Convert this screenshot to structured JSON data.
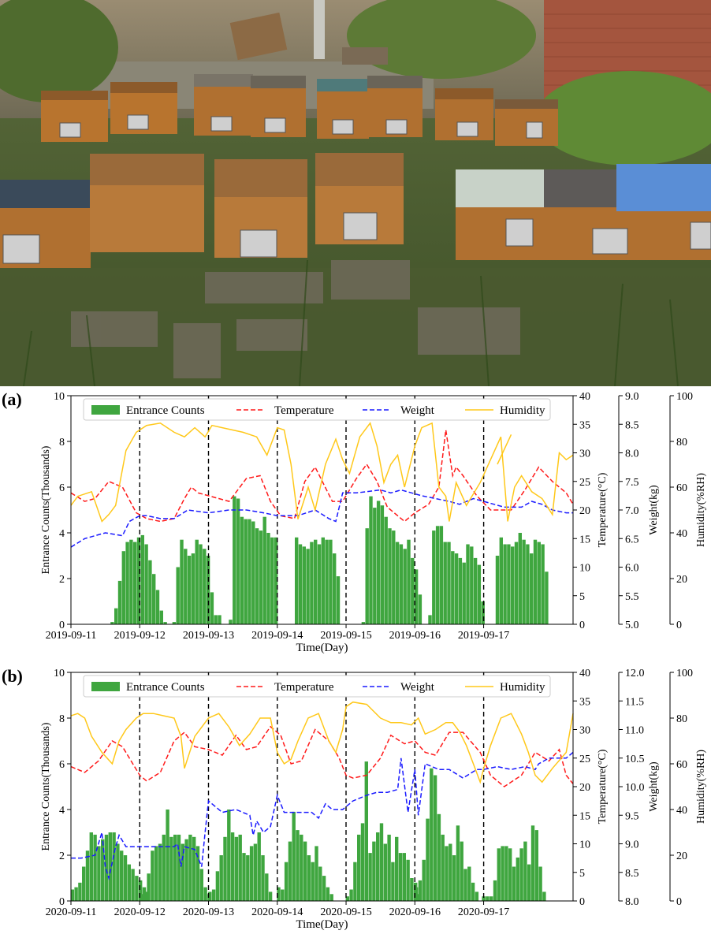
{
  "figure": {
    "photo_description": "Outdoor apiary: rows of wooden beehives with wire-mesh vents on grass beside a brick wall",
    "colors": {
      "bars": "#3fa63f",
      "temperature": "#ff1a1a",
      "weight": "#1a1aff",
      "humidity": "#ffc81a"
    }
  },
  "chart_data": [
    {
      "panel_label": "(a)",
      "type": "bar",
      "legend": [
        "Entrance Counts",
        "Temperature",
        "Weight",
        "Humidity"
      ],
      "xlabel": "Time(Day)",
      "x_ticks": [
        "2019-09-11",
        "2019-09-12",
        "2019-09-13",
        "2019-09-14",
        "2019-09-15",
        "2019-09-16",
        "2019-09-17"
      ],
      "axes": [
        {
          "label": "Entrance Counts(Thousands)",
          "range": [
            0,
            10
          ],
          "ticks": [
            "0",
            "2",
            "4",
            "6",
            "8",
            "10"
          ]
        },
        {
          "label": "Temperature(°C)",
          "range": [
            0,
            40
          ],
          "ticks": [
            "0",
            "5",
            "10",
            "15",
            "20",
            "25",
            "30",
            "35",
            "40"
          ]
        },
        {
          "label": "Weight(kg)",
          "range": [
            5.0,
            9.0
          ],
          "ticks": [
            "5.0",
            "5.5",
            "6.0",
            "6.5",
            "7.0",
            "7.5",
            "8.0",
            "8.5",
            "9.0"
          ]
        },
        {
          "label": "Humidity(%RH)",
          "range": [
            0,
            100
          ],
          "ticks": [
            "0",
            "20",
            "40",
            "60",
            "80",
            "100"
          ]
        }
      ],
      "day_bars": [
        [
          0.1,
          0.7,
          1.9,
          3.2,
          3.6,
          3.7,
          3.6,
          3.8,
          3.9,
          3.5,
          2.8,
          2.2,
          1.5,
          0.6,
          0.1
        ],
        [
          0.1,
          2.5,
          3.7,
          3.3,
          3.0,
          3.1,
          3.7,
          3.5,
          3.3,
          3.0,
          1.4,
          0.4,
          0.4
        ],
        [
          0.2,
          5.6,
          5.5,
          4.7,
          4.6,
          4.6,
          4.5,
          4.2,
          4.1,
          4.7,
          4.0,
          3.8,
          3.8
        ],
        [
          3.8,
          3.5,
          3.4,
          3.3,
          3.6,
          3.7,
          3.5,
          3.8,
          3.7,
          3.7,
          3.1,
          2.1
        ],
        [
          0.1,
          4.2,
          5.6,
          5.1,
          5.4,
          5.2,
          4.7,
          4.2,
          4.1,
          3.6,
          3.5,
          3.3,
          3.7,
          2.9,
          2.4,
          1.3
        ],
        [
          0.4,
          4.1,
          4.3,
          4.3,
          3.6,
          3.6,
          3.2,
          3.1,
          2.9,
          2.7,
          3.5,
          3.4,
          2.9,
          2.6,
          1.0
        ],
        [
          3.0,
          3.8,
          3.5,
          3.5,
          3.4,
          3.6,
          4.0,
          3.7,
          3.5,
          3.1,
          3.7,
          3.6,
          3.5,
          2.3
        ]
      ],
      "bar_start": [
        0.6,
        1.5,
        2.32,
        3.28,
        4.25,
        5.22,
        6.2
      ],
      "series": [
        {
          "name": "Temperature",
          "x": [
            0,
            0.2,
            0.35,
            0.55,
            0.75,
            0.95,
            1.1,
            1.3,
            1.5,
            1.65,
            1.75,
            1.85,
            2.0,
            2.3,
            2.55,
            2.75,
            2.9,
            3.05,
            3.25,
            3.4,
            3.55,
            3.8,
            3.95,
            4.15,
            4.3,
            4.45,
            4.6,
            4.85,
            5.0,
            5.2,
            5.35,
            5.45,
            5.55,
            5.6,
            5.7,
            5.9,
            6.1,
            6.4,
            6.6,
            6.8,
            7.0,
            7.2,
            7.3
          ],
          "values": [
            23,
            21.5,
            22,
            25,
            24,
            19.5,
            18.5,
            18,
            18.5,
            22,
            24,
            23,
            22.5,
            21.5,
            25.5,
            26,
            21.5,
            19,
            18.5,
            25,
            27.5,
            21.5,
            21.5,
            25.5,
            28,
            25,
            20.5,
            18,
            19.5,
            21,
            24,
            34,
            26,
            27.5,
            26,
            22.5,
            20,
            20,
            23.5,
            27.5,
            25,
            23,
            21
          ]
        },
        {
          "name": "Weight",
          "x": [
            0,
            0.2,
            0.5,
            0.75,
            0.85,
            1.0,
            1.1,
            1.3,
            1.5,
            1.7,
            2.0,
            2.3,
            2.55,
            2.8,
            3.0,
            3.3,
            3.55,
            3.75,
            3.85,
            3.95,
            4.15,
            4.5,
            4.65,
            4.8,
            5.1,
            5.3,
            5.5,
            5.65,
            5.85,
            6.0,
            6.3,
            6.55,
            6.7,
            6.85,
            7.0,
            7.2,
            7.3
          ],
          "values": [
            6.35,
            6.5,
            6.6,
            6.55,
            6.8,
            6.9,
            6.9,
            6.85,
            6.85,
            7.0,
            6.95,
            7.0,
            7.0,
            6.95,
            6.9,
            6.9,
            7.0,
            6.85,
            6.8,
            7.3,
            7.3,
            7.35,
            7.3,
            7.35,
            7.25,
            7.2,
            7.15,
            7.1,
            7.2,
            7.15,
            7.05,
            7.05,
            7.15,
            7.1,
            7.0,
            6.95,
            6.95
          ]
        },
        {
          "name": "Humidity",
          "x": [
            0,
            0.1,
            0.3,
            0.45,
            0.55,
            0.65,
            0.8,
            0.95,
            1.1,
            1.3,
            1.5,
            1.65,
            1.8,
            1.95,
            2.05,
            2.2,
            2.35,
            2.5,
            2.7,
            2.85,
            3.0,
            3.1,
            3.2,
            3.3,
            3.45,
            3.55,
            3.7,
            3.85,
            3.95,
            4.05,
            4.2,
            4.35,
            4.45,
            4.55,
            4.65,
            4.75,
            4.85,
            5.0,
            5.1,
            5.25,
            5.35,
            5.45,
            5.5,
            5.6,
            5.75,
            5.95,
            6.1,
            6.25,
            6.35,
            6.45,
            6.55,
            6.7,
            6.85,
            7.0,
            7.1,
            7.2,
            7.3
          ],
          "values": [
            52,
            56,
            58,
            45,
            48,
            52,
            76,
            84,
            87,
            88,
            84,
            82,
            86,
            82,
            87,
            86,
            85,
            84,
            82,
            74,
            86,
            85,
            70,
            46,
            60,
            50,
            70,
            81,
            72,
            66,
            82,
            88,
            78,
            62,
            70,
            74,
            60,
            78,
            86,
            88,
            60,
            56,
            45,
            62,
            52,
            62,
            72,
            82,
            45,
            60,
            65,
            58,
            55,
            48,
            75,
            72,
            74
          ]
        }
      ],
      "humidity_bump": [
        6.2,
        70,
        6.4,
        83
      ]
    },
    {
      "panel_label": "(b)",
      "type": "bar",
      "legend": [
        "Entrance Counts",
        "Temperature",
        "Weight",
        "Humidity"
      ],
      "xlabel": "Time(Day)",
      "x_ticks": [
        "2020-09-11",
        "2020-09-12",
        "2020-09-13",
        "2020-09-14",
        "2020-09-15",
        "2020-09-16",
        "2020-09-17"
      ],
      "axes": [
        {
          "label": "Entrance Counts(Thousands)",
          "range": [
            0,
            10
          ],
          "ticks": [
            "0",
            "2",
            "4",
            "6",
            "8",
            "10"
          ]
        },
        {
          "label": "Temperature(°C)",
          "range": [
            0,
            40
          ],
          "ticks": [
            "0",
            "5",
            "10",
            "15",
            "20",
            "25",
            "30",
            "35",
            "40"
          ]
        },
        {
          "label": "Weight(kg)",
          "range": [
            8.0,
            12.0
          ],
          "ticks": [
            "8.0",
            "8.5",
            "9.0",
            "9.5",
            "10.0",
            "10.5",
            "11.0",
            "11.5",
            "12.0"
          ]
        },
        {
          "label": "Humidity(%RH)",
          "range": [
            0,
            100
          ],
          "ticks": [
            "0",
            "20",
            "40",
            "60",
            "80",
            "100"
          ]
        }
      ],
      "day_bars": [
        [
          0.5,
          0.6,
          0.8,
          1.5,
          2.2,
          3.0,
          2.9,
          2.4,
          2.7,
          2.9,
          3.0,
          3.0,
          2.5,
          2.2,
          2.0,
          1.6,
          1.4,
          1.1,
          0.9,
          0.6,
          0.4
        ],
        [
          0.3,
          0.4,
          1.2,
          2.2,
          2.4,
          2.5,
          2.9,
          4.0,
          2.8,
          2.9,
          2.9,
          2.5,
          2.7,
          2.9,
          2.8,
          2.4,
          1.4,
          0.6,
          0.3
        ],
        [
          0.4,
          0.5,
          1.3,
          2.0,
          2.8,
          4.0,
          3.0,
          2.8,
          2.9,
          2.1,
          2.0,
          2.4,
          2.5,
          3.0,
          2.0,
          1.2,
          0.4
        ],
        [
          0.6,
          0.5,
          1.7,
          2.6,
          3.9,
          3.1,
          2.9,
          2.6,
          2.0,
          1.7,
          2.4,
          1.5,
          1.1,
          0.6,
          0.3
        ],
        [
          0.2,
          0.5,
          1.7,
          2.9,
          3.4,
          6.1,
          2.1,
          2.6,
          3.0,
          3.4,
          2.5,
          2.9,
          1.7,
          2.8,
          2.1,
          2.1,
          1.8,
          1.0,
          0.8,
          0.3
        ],
        [
          0.6,
          0.9,
          1.8,
          3.6,
          5.8,
          5.5,
          3.8,
          2.9,
          2.4,
          2.5,
          2.0,
          3.3,
          2.6,
          1.4,
          1.5,
          0.8,
          0.4
        ],
        [
          0.2,
          0.2,
          0.2,
          0.9,
          2.3,
          2.4,
          2.4,
          2.3,
          1.5,
          1.9,
          2.3,
          2.6,
          1.6,
          3.3,
          3.1,
          1.5,
          0.4
        ]
      ],
      "bar_start": [
        0.02,
        1.02,
        2.02,
        3.02,
        4.02,
        5.02,
        6.0
      ],
      "series": [
        {
          "name": "Temperature",
          "x": [
            0,
            0.2,
            0.4,
            0.6,
            0.75,
            0.9,
            1.0,
            1.1,
            1.3,
            1.5,
            1.65,
            1.8,
            2.0,
            2.2,
            2.4,
            2.55,
            2.7,
            2.9,
            3.05,
            3.2,
            3.35,
            3.55,
            3.75,
            3.9,
            4.0,
            4.1,
            4.3,
            4.5,
            4.65,
            4.85,
            5.0,
            5.15,
            5.3,
            5.5,
            5.7,
            5.95,
            6.1,
            6.3,
            6.55,
            6.75,
            6.95,
            7.1,
            7.2,
            7.3
          ],
          "values": [
            23.5,
            22.5,
            24.5,
            28,
            27,
            24,
            22,
            21,
            22.5,
            28,
            29.5,
            27,
            26.5,
            25.5,
            29,
            26.5,
            27,
            30.5,
            29,
            24,
            24.5,
            30,
            28,
            25,
            22,
            21.5,
            22,
            25,
            29,
            27.5,
            28,
            26,
            25.5,
            29.5,
            29.5,
            26,
            22,
            20,
            22,
            26,
            24.5,
            26.5,
            22,
            20.5
          ]
        },
        {
          "name": "Weight",
          "x": [
            0,
            0.15,
            0.35,
            0.45,
            0.5,
            0.55,
            0.65,
            0.7,
            0.8,
            1.0,
            1.2,
            1.4,
            1.5,
            1.55,
            1.6,
            1.65,
            1.8,
            1.9,
            1.95,
            2.0,
            2.2,
            2.4,
            2.6,
            2.65,
            2.7,
            2.8,
            2.9,
            3.0,
            3.1,
            3.3,
            3.5,
            3.6,
            3.7,
            3.8,
            3.95,
            4.1,
            4.3,
            4.45,
            4.6,
            4.75,
            4.8,
            4.9,
            5.0,
            5.05,
            5.15,
            5.35,
            5.5,
            5.7,
            5.9,
            6.0,
            6.2,
            6.4,
            6.6,
            6.75,
            6.8,
            6.95,
            7.1,
            7.2,
            7.3
          ],
          "values": [
            8.75,
            8.75,
            8.8,
            9.2,
            8.6,
            8.4,
            8.95,
            9.15,
            8.95,
            8.95,
            8.95,
            8.95,
            8.95,
            9.0,
            8.6,
            8.95,
            8.9,
            8.6,
            9.2,
            9.75,
            9.55,
            9.6,
            9.5,
            9.15,
            9.4,
            9.2,
            9.3,
            9.85,
            9.55,
            9.55,
            9.55,
            9.45,
            9.7,
            9.6,
            9.6,
            9.75,
            9.85,
            9.9,
            9.9,
            9.95,
            10.5,
            9.55,
            10.3,
            9.5,
            10.4,
            10.3,
            10.3,
            10.15,
            10.3,
            10.3,
            10.35,
            10.3,
            10.35,
            10.3,
            10.4,
            10.5,
            10.5,
            10.5,
            10.6
          ]
        },
        {
          "name": "Humidity",
          "x": [
            0,
            0.1,
            0.2,
            0.3,
            0.45,
            0.6,
            0.7,
            0.8,
            0.95,
            1.05,
            1.2,
            1.35,
            1.5,
            1.6,
            1.65,
            1.8,
            2.0,
            2.15,
            2.3,
            2.45,
            2.6,
            2.75,
            2.9,
            3.0,
            3.1,
            3.2,
            3.3,
            3.45,
            3.6,
            3.75,
            3.85,
            3.95,
            4.0,
            4.1,
            4.3,
            4.5,
            4.65,
            4.8,
            4.95,
            5.05,
            5.15,
            5.3,
            5.45,
            5.55,
            5.65,
            5.75,
            5.85,
            5.95,
            6.0,
            6.1,
            6.25,
            6.4,
            6.55,
            6.65,
            6.75,
            6.85,
            7.0,
            7.2,
            7.3
          ],
          "values": [
            81,
            82,
            80,
            72,
            65,
            60,
            70,
            75,
            80,
            82,
            82,
            81,
            80,
            72,
            58,
            72,
            80,
            82,
            76,
            68,
            73,
            80,
            80,
            65,
            60,
            62,
            70,
            80,
            82,
            70,
            65,
            75,
            85,
            87,
            86,
            80,
            78,
            78,
            77,
            80,
            73,
            75,
            78,
            78,
            74,
            68,
            60,
            52,
            58,
            68,
            80,
            82,
            73,
            65,
            55,
            52,
            58,
            65,
            82
          ]
        }
      ]
    }
  ]
}
